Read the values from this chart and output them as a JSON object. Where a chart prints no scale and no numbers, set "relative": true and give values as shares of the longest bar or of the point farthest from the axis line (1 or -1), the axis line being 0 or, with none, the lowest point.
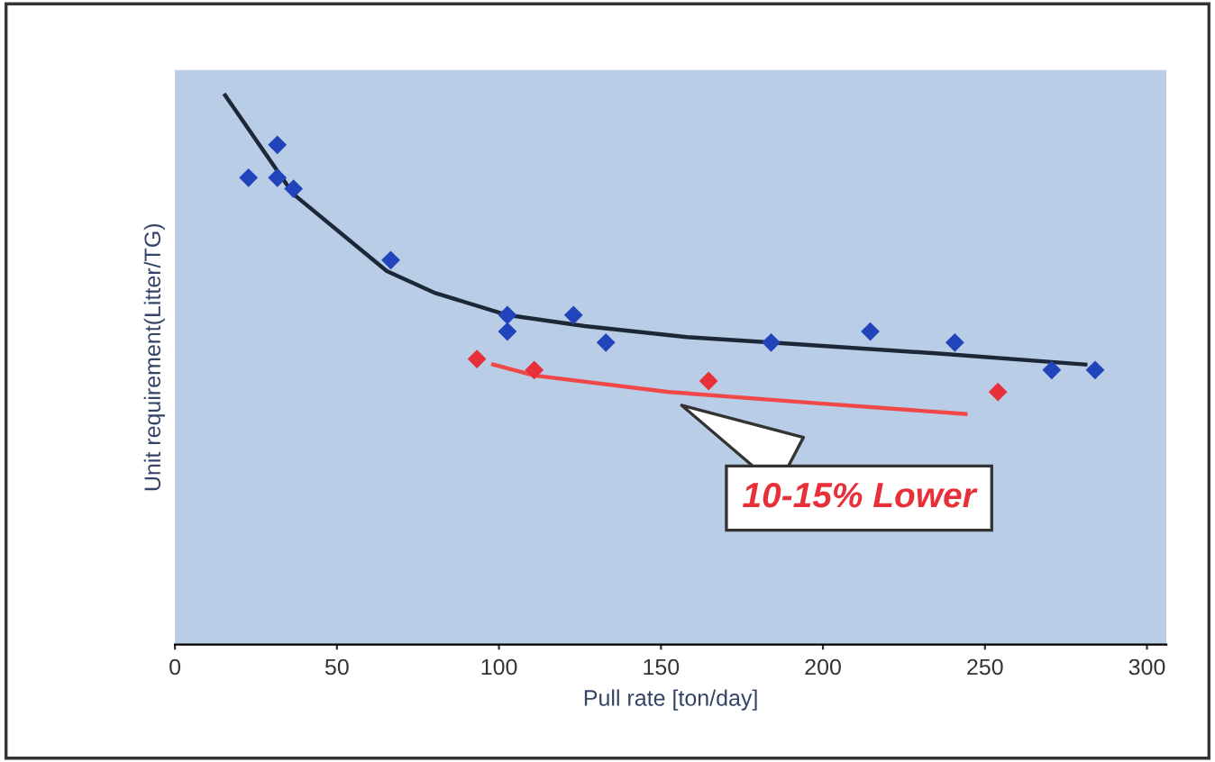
{
  "chart_data": {
    "type": "scatter",
    "xlabel": "Pull rate [ton/day]",
    "ylabel": "Unit requirement(Litter/TG)",
    "relative": true,
    "xlim": [
      0,
      306
    ],
    "xticks": [
      0,
      50,
      100,
      150,
      200,
      250,
      300
    ],
    "tick_labels": "x",
    "grid": false,
    "legend": false,
    "series": [
      {
        "marker": "diamond",
        "color": "#2244bb",
        "x": [
          22.7,
          31.6,
          31.6,
          36.6,
          66.6,
          102.6,
          102.6,
          123,
          133,
          184,
          214.6,
          240.7,
          270.6,
          284
        ],
        "values": [
          0.85,
          0.91,
          0.85,
          0.83,
          0.7,
          0.6,
          0.57,
          0.6,
          0.55,
          0.55,
          0.57,
          0.55,
          0.5,
          0.5
        ]
      },
      {
        "marker": "diamond",
        "color": "#e8303a",
        "x": [
          93.2,
          110.9,
          164.7,
          254
        ],
        "values": [
          0.52,
          0.5,
          0.48,
          0.46
        ]
      },
      {
        "type": "line",
        "marker": "none",
        "color": "#1c2838",
        "x": [
          15.5,
          36.6,
          65.4,
          80.4,
          102.6,
          126.4,
          158,
          184,
          235.7,
          281
        ],
        "values": [
          1.0,
          0.82,
          0.68,
          0.64,
          0.6,
          0.58,
          0.56,
          0.55,
          0.53,
          0.51
        ]
      },
      {
        "type": "line",
        "marker": "none",
        "color": "#f04848",
        "x": [
          98.2,
          110.9,
          152.5,
          196.9,
          244
        ],
        "values": [
          0.51,
          0.49,
          0.46,
          0.44,
          0.42
        ]
      }
    ],
    "annotations": [
      {
        "text": "10-15% Lower",
        "x": 155,
        "y": 0.44
      }
    ]
  }
}
